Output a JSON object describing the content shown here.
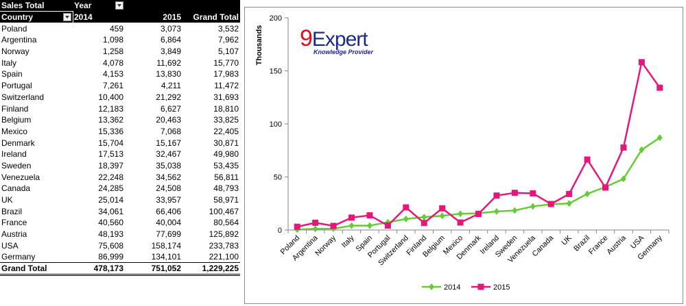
{
  "pivot": {
    "header1": {
      "measure": "Sales Total",
      "column_field": "Year"
    },
    "header2": {
      "row_field": "Country",
      "col_2014": "2014",
      "col_2015": "2015",
      "grand_total": "Grand Total"
    },
    "rows": [
      {
        "country": "Poland",
        "v2014": "459",
        "v2015": "3,073",
        "total": "3,532"
      },
      {
        "country": "Argentina",
        "v2014": "1,098",
        "v2015": "6,864",
        "total": "7,962"
      },
      {
        "country": "Norway",
        "v2014": "1,258",
        "v2015": "3,849",
        "total": "5,107"
      },
      {
        "country": "Italy",
        "v2014": "4,078",
        "v2015": "11,692",
        "total": "15,770"
      },
      {
        "country": "Spain",
        "v2014": "4,153",
        "v2015": "13,830",
        "total": "17,983"
      },
      {
        "country": "Portugal",
        "v2014": "7,261",
        "v2015": "4,211",
        "total": "11,472"
      },
      {
        "country": "Switzerland",
        "v2014": "10,400",
        "v2015": "21,292",
        "total": "31,693"
      },
      {
        "country": "Finland",
        "v2014": "12,183",
        "v2015": "6,627",
        "total": "18,810"
      },
      {
        "country": "Belgium",
        "v2014": "13,362",
        "v2015": "20,463",
        "total": "33,825"
      },
      {
        "country": "Mexico",
        "v2014": "15,336",
        "v2015": "7,068",
        "total": "22,405"
      },
      {
        "country": "Denmark",
        "v2014": "15,704",
        "v2015": "15,167",
        "total": "30,871"
      },
      {
        "country": "Ireland",
        "v2014": "17,513",
        "v2015": "32,467",
        "total": "49,980"
      },
      {
        "country": "Sweden",
        "v2014": "18,397",
        "v2015": "35,038",
        "total": "53,435"
      },
      {
        "country": "Venezuela",
        "v2014": "22,248",
        "v2015": "34,562",
        "total": "56,811"
      },
      {
        "country": "Canada",
        "v2014": "24,285",
        "v2015": "24,508",
        "total": "48,793"
      },
      {
        "country": "UK",
        "v2014": "25,014",
        "v2015": "33,957",
        "total": "58,971"
      },
      {
        "country": "Brazil",
        "v2014": "34,061",
        "v2015": "66,406",
        "total": "100,467"
      },
      {
        "country": "France",
        "v2014": "40,560",
        "v2015": "40,004",
        "total": "80,564"
      },
      {
        "country": "Austria",
        "v2014": "48,193",
        "v2015": "77,699",
        "total": "125,892"
      },
      {
        "country": "USA",
        "v2014": "75,608",
        "v2015": "158,174",
        "total": "233,783"
      },
      {
        "country": "Germany",
        "v2014": "86,999",
        "v2015": "134,101",
        "total": "221,100"
      }
    ],
    "grand_total_row": {
      "label": "Grand Total",
      "v2014": "478,173",
      "v2015": "751,052",
      "total": "1,229,225"
    }
  },
  "logo": {
    "text_nine": "9",
    "text_main": "Expert",
    "tagline": "Knowledge Provider"
  },
  "chart_data": {
    "type": "line",
    "ylabel": "Thousands",
    "ylim": [
      0,
      200
    ],
    "yticks": [
      0,
      50,
      100,
      150,
      200
    ],
    "grid": false,
    "legend_position": "bottom",
    "categories": [
      "Poland",
      "Argentina",
      "Norway",
      "Italy",
      "Spain",
      "Portugal",
      "Switzerland",
      "Finland",
      "Belgium",
      "Mexico",
      "Denmark",
      "Ireland",
      "Sweden",
      "Venezuela",
      "Canada",
      "UK",
      "Brazil",
      "France",
      "Austria",
      "USA",
      "Germany"
    ],
    "series": [
      {
        "name": "2014",
        "color": "#66cc33",
        "marker": "diamond",
        "values": [
          0.459,
          1.098,
          1.258,
          4.078,
          4.153,
          7.261,
          10.4,
          12.183,
          13.362,
          15.336,
          15.704,
          17.513,
          18.397,
          22.248,
          24.285,
          25.014,
          34.061,
          40.56,
          48.193,
          75.608,
          86.999
        ]
      },
      {
        "name": "2015",
        "color": "#e6177a",
        "marker": "square",
        "values": [
          3.073,
          6.864,
          3.849,
          11.692,
          13.83,
          4.211,
          21.292,
          6.627,
          20.463,
          7.068,
          15.167,
          32.467,
          35.038,
          34.562,
          24.508,
          33.957,
          66.406,
          40.004,
          77.699,
          158.174,
          134.101
        ]
      }
    ]
  }
}
